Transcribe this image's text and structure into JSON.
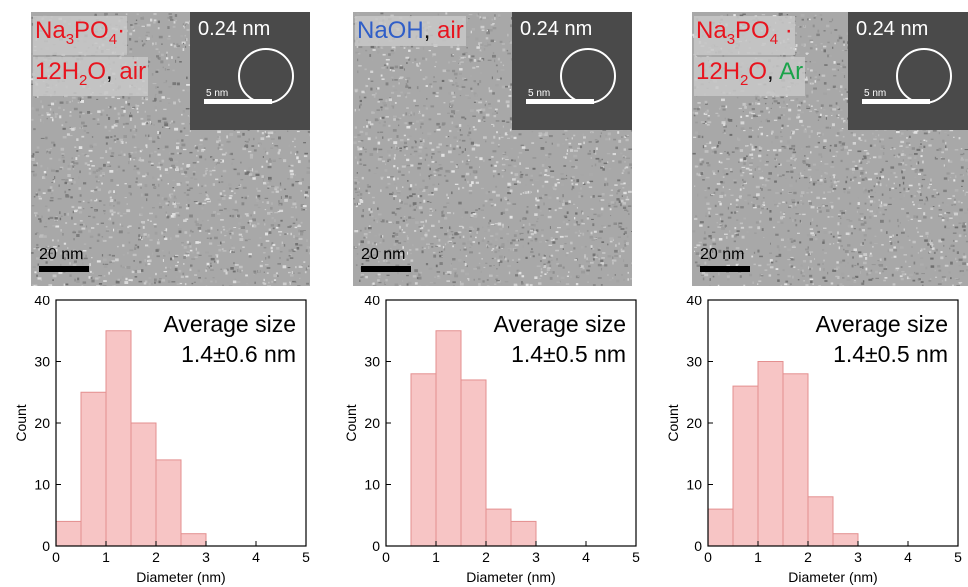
{
  "panels": [
    {
      "condition_row1": [
        {
          "text": "Na",
          "color": "red"
        },
        {
          "text": "3",
          "color": "red",
          "sub": true
        },
        {
          "text": "PO",
          "color": "red"
        },
        {
          "text": "4",
          "color": "red",
          "sub": true
        },
        {
          "text": "·",
          "color": "red"
        }
      ],
      "condition_row2": [
        {
          "text": "12H",
          "color": "red"
        },
        {
          "text": "2",
          "color": "red",
          "sub": true
        },
        {
          "text": "O",
          "color": "red"
        },
        {
          "text": ", ",
          "color": "black"
        },
        {
          "text": "air",
          "color": "red"
        }
      ],
      "inset_label": "0.24 nm",
      "inset_scale": "5 nm",
      "scale_label": "20 nm"
    },
    {
      "condition_row1": [
        {
          "text": "NaOH",
          "color": "blue"
        },
        {
          "text": ", ",
          "color": "black"
        },
        {
          "text": "air",
          "color": "red"
        }
      ],
      "condition_row2": [],
      "inset_label": "0.24 nm",
      "inset_scale": "5 nm",
      "scale_label": "20 nm"
    },
    {
      "condition_row1": [
        {
          "text": "Na",
          "color": "red"
        },
        {
          "text": "3",
          "color": "red",
          "sub": true
        },
        {
          "text": "PO",
          "color": "red"
        },
        {
          "text": "4",
          "color": "red",
          "sub": true
        },
        {
          "text": " ·",
          "color": "red"
        }
      ],
      "condition_row2": [
        {
          "text": "12H",
          "color": "red"
        },
        {
          "text": "2",
          "color": "red",
          "sub": true
        },
        {
          "text": "O",
          "color": "red"
        },
        {
          "text": ", ",
          "color": "black"
        },
        {
          "text": "Ar",
          "color": "green"
        }
      ],
      "inset_label": "0.24 nm",
      "inset_scale": "5 nm",
      "scale_label": "20 nm"
    }
  ],
  "colors": {
    "bar_fill": "#f7c5c5",
    "bar_edge": "#e38f8f",
    "red": "#e8141e",
    "blue": "#2f5ec8",
    "green": "#1aa34a"
  },
  "chart_data": [
    {
      "type": "bar",
      "xlabel": "Diameter (nm)",
      "ylabel": "Count",
      "xlim": [
        0,
        5
      ],
      "ylim": [
        0,
        40
      ],
      "xticks": [
        0,
        1,
        2,
        3,
        4,
        5
      ],
      "yticks": [
        0,
        10,
        20,
        30,
        40
      ],
      "bin_width": 0.5,
      "bins": [
        0,
        0.5,
        1.0,
        1.5,
        2.0,
        2.5
      ],
      "values": [
        4,
        25,
        35,
        20,
        14,
        2
      ],
      "annotation": [
        "Average size",
        "1.4±0.6 nm"
      ]
    },
    {
      "type": "bar",
      "xlabel": "Diameter (nm)",
      "ylabel": "Count",
      "xlim": [
        0,
        5
      ],
      "ylim": [
        0,
        40
      ],
      "xticks": [
        0,
        1,
        2,
        3,
        4,
        5
      ],
      "yticks": [
        0,
        10,
        20,
        30,
        40
      ],
      "bin_width": 0.5,
      "bins": [
        0.5,
        1.0,
        1.5,
        2.0,
        2.5
      ],
      "values": [
        28,
        35,
        27,
        6,
        4
      ],
      "annotation": [
        "Average size",
        "1.4±0.5 nm"
      ]
    },
    {
      "type": "bar",
      "xlabel": "Diameter (nm)",
      "ylabel": "Count",
      "xlim": [
        0,
        5
      ],
      "ylim": [
        0,
        40
      ],
      "xticks": [
        0,
        1,
        2,
        3,
        4,
        5
      ],
      "yticks": [
        0,
        10,
        20,
        30,
        40
      ],
      "bin_width": 0.5,
      "bins": [
        0,
        0.5,
        1.0,
        1.5,
        2.0,
        2.5
      ],
      "values": [
        6,
        26,
        30,
        28,
        8,
        2
      ],
      "annotation": [
        "Average size",
        "1.4±0.5 nm"
      ]
    }
  ]
}
